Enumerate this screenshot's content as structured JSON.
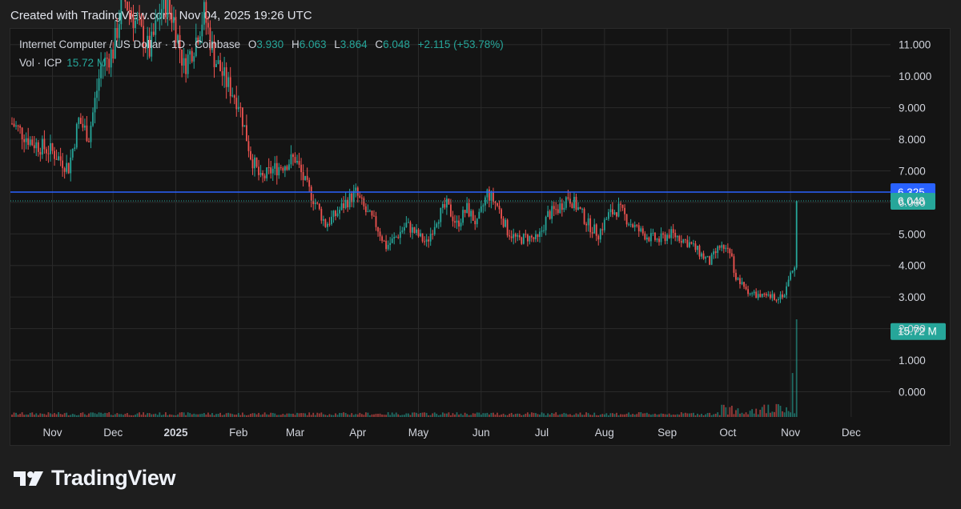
{
  "caption": "Created with TradingView.com, Nov 04, 2025 19:26 UTC",
  "brand": "TradingView",
  "legend": {
    "symbol": "Internet Computer / US Dollar · 1D · Coinbase",
    "o_label": "O",
    "o": "3.930",
    "h_label": "H",
    "h": "6.063",
    "l_label": "L",
    "l": "3.864",
    "c_label": "C",
    "c": "6.048",
    "change": "+2.115 (+53.78%)",
    "vol_label": "Vol · ICP",
    "vol_value": "15.72 M"
  },
  "colors": {
    "up": "#26a69a",
    "down": "#ef5350",
    "line": "#2962ff",
    "grid": "#2a2a2a"
  },
  "chart_data": {
    "type": "candlestick",
    "y_ticks": [
      "11.000",
      "10.000",
      "9.000",
      "8.000",
      "7.000",
      "6.000",
      "5.000",
      "4.000",
      "3.000",
      "2.000",
      "1.000",
      "0.000"
    ],
    "y_tick_values": [
      11,
      10,
      9,
      8,
      7,
      6,
      5,
      4,
      3,
      2,
      1,
      0
    ],
    "ylim": [
      -0.8,
      11.5
    ],
    "x_labels": [
      {
        "label": "Nov",
        "day": 20
      },
      {
        "label": "Dec",
        "day": 50
      },
      {
        "label": "2025",
        "day": 81
      },
      {
        "label": "Feb",
        "day": 112
      },
      {
        "label": "Mar",
        "day": 140
      },
      {
        "label": "Apr",
        "day": 171
      },
      {
        "label": "May",
        "day": 201
      },
      {
        "label": "Jun",
        "day": 232
      },
      {
        "label": "Jul",
        "day": 262
      },
      {
        "label": "Aug",
        "day": 293
      },
      {
        "label": "Sep",
        "day": 324
      },
      {
        "label": "Oct",
        "day": 354
      },
      {
        "label": "Nov",
        "day": 385
      },
      {
        "label": "Dec",
        "day": 415
      }
    ],
    "horizontal_line": {
      "value": 6.325,
      "label": "6.325"
    },
    "last_price": {
      "value": 6.048,
      "label": "6.048"
    },
    "volume_label": {
      "value": 2.2,
      "label": "15.72 M"
    },
    "close_path": [
      [
        0,
        8.5
      ],
      [
        10,
        7.9
      ],
      [
        20,
        7.6
      ],
      [
        28,
        7.1
      ],
      [
        33,
        8.6
      ],
      [
        38,
        8.1
      ],
      [
        44,
        10.3
      ],
      [
        50,
        10.8
      ],
      [
        55,
        12.5
      ],
      [
        62,
        11.6
      ],
      [
        68,
        10.8
      ],
      [
        75,
        12.4
      ],
      [
        80,
        11.8
      ],
      [
        85,
        10.3
      ],
      [
        90,
        11.0
      ],
      [
        95,
        12.0
      ],
      [
        100,
        10.6
      ],
      [
        106,
        9.8
      ],
      [
        112,
        9.2
      ],
      [
        118,
        7.5
      ],
      [
        123,
        6.7
      ],
      [
        128,
        7.0
      ],
      [
        134,
        7.2
      ],
      [
        140,
        7.4
      ],
      [
        145,
        6.6
      ],
      [
        150,
        6.0
      ],
      [
        155,
        5.3
      ],
      [
        160,
        5.6
      ],
      [
        165,
        6.0
      ],
      [
        170,
        6.3
      ],
      [
        175,
        5.7
      ],
      [
        180,
        5.3
      ],
      [
        185,
        4.6
      ],
      [
        190,
        4.9
      ],
      [
        195,
        5.3
      ],
      [
        200,
        5.0
      ],
      [
        205,
        4.7
      ],
      [
        210,
        5.5
      ],
      [
        215,
        5.9
      ],
      [
        220,
        5.3
      ],
      [
        225,
        5.8
      ],
      [
        230,
        5.3
      ],
      [
        235,
        6.3
      ],
      [
        240,
        5.9
      ],
      [
        245,
        5.1
      ],
      [
        250,
        4.8
      ],
      [
        255,
        4.9
      ],
      [
        260,
        4.8
      ],
      [
        265,
        5.6
      ],
      [
        270,
        5.8
      ],
      [
        275,
        6.2
      ],
      [
        280,
        5.8
      ],
      [
        285,
        5.3
      ],
      [
        290,
        5.0
      ],
      [
        295,
        5.6
      ],
      [
        300,
        5.8
      ],
      [
        305,
        5.4
      ],
      [
        310,
        5.1
      ],
      [
        315,
        4.9
      ],
      [
        320,
        4.8
      ],
      [
        325,
        5.0
      ],
      [
        330,
        4.9
      ],
      [
        335,
        4.7
      ],
      [
        340,
        4.4
      ],
      [
        345,
        4.1
      ],
      [
        350,
        4.6
      ],
      [
        355,
        4.5
      ],
      [
        358,
        3.6
      ],
      [
        362,
        3.3
      ],
      [
        366,
        3.1
      ],
      [
        372,
        3.0
      ],
      [
        378,
        3.0
      ],
      [
        382,
        3.1
      ],
      [
        386,
        3.93
      ],
      [
        388,
        6.048
      ]
    ],
    "volume_spikes": [
      [
        360,
        0.07
      ],
      [
        384,
        0.1
      ],
      [
        386,
        0.45
      ],
      [
        388,
        1.0
      ]
    ]
  }
}
